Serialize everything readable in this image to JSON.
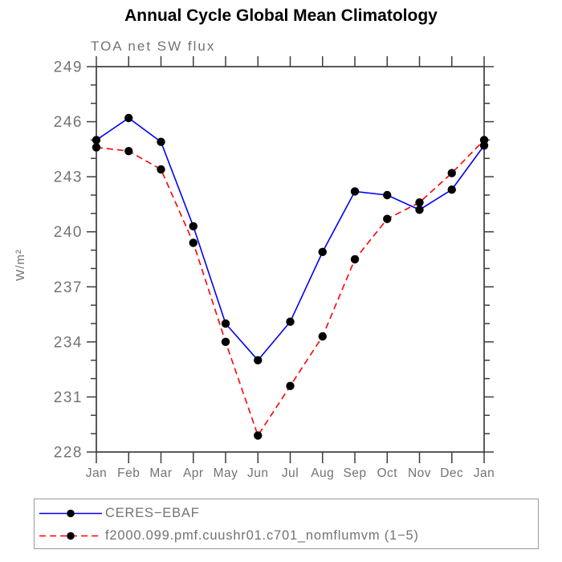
{
  "chart_data": {
    "type": "line",
    "title": "Annual Cycle Global Mean Climatology",
    "subtitle": "TOA net SW flux",
    "ylabel": "W/m²",
    "xlabel": "",
    "categories": [
      "Jan",
      "Feb",
      "Mar",
      "Apr",
      "May",
      "Jun",
      "Jul",
      "Aug",
      "Sep",
      "Oct",
      "Nov",
      "Dec",
      "Jan"
    ],
    "ylim": [
      228,
      249
    ],
    "ytick_major": 3,
    "ytick_minor": 1,
    "ytick_labels": [
      "228",
      "231",
      "234",
      "237",
      "240",
      "243",
      "246",
      "249"
    ],
    "grid": false,
    "legend_position": "bottom",
    "marker_color": "#000000",
    "axis_color": "#3d3d3d",
    "label_color": "#737373",
    "series": [
      {
        "name": "CERES−EBAF",
        "color": "#0000ee",
        "style": "solid",
        "marker": "black-dot",
        "values": [
          245.0,
          246.2,
          244.9,
          240.3,
          235.0,
          233.0,
          235.1,
          238.9,
          242.2,
          242.0,
          241.2,
          242.3,
          244.7
        ]
      },
      {
        "name": "f2000.099.pmf.cuushr01.c701_nomflumvm (1−5)",
        "color": "#ff0000",
        "style": "dashed",
        "marker": "black-dot",
        "values": [
          244.6,
          244.4,
          243.4,
          239.4,
          234.0,
          228.9,
          231.6,
          234.3,
          238.5,
          240.7,
          241.6,
          243.2,
          245.0
        ]
      }
    ]
  }
}
